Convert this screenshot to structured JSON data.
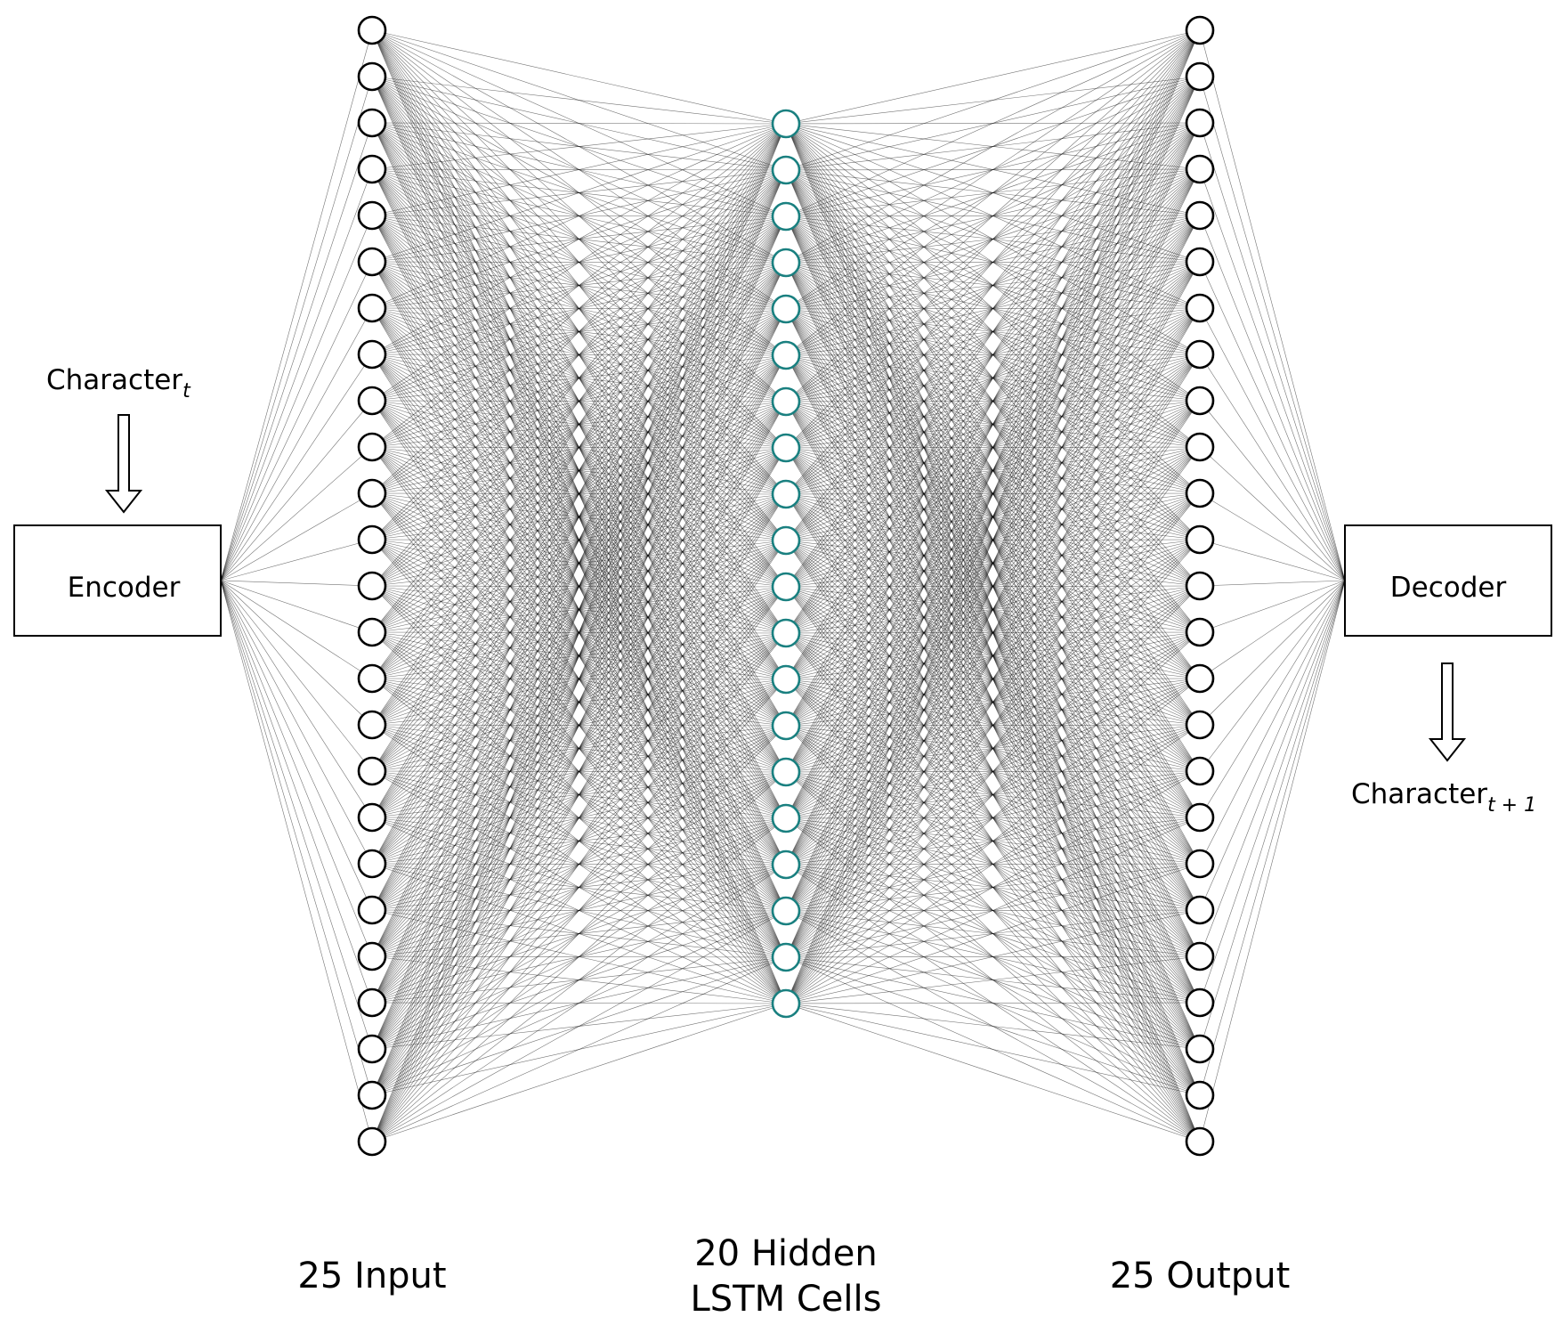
{
  "colors": {
    "input_node": "#000000",
    "hidden_node": "#1a8080",
    "output_node": "#000000"
  },
  "encoder": {
    "label": "Encoder",
    "input_label": "Character",
    "input_sub": "t"
  },
  "decoder": {
    "label": "Decoder",
    "output_label": "Character",
    "output_sub": "t + 1"
  },
  "layers": {
    "input": {
      "count": 25,
      "label": "25 Input"
    },
    "hidden": {
      "count": 20,
      "label_line1": "20 Hidden",
      "label_line2": "LSTM Cells"
    },
    "output": {
      "count": 25,
      "label": "25 Output"
    }
  }
}
